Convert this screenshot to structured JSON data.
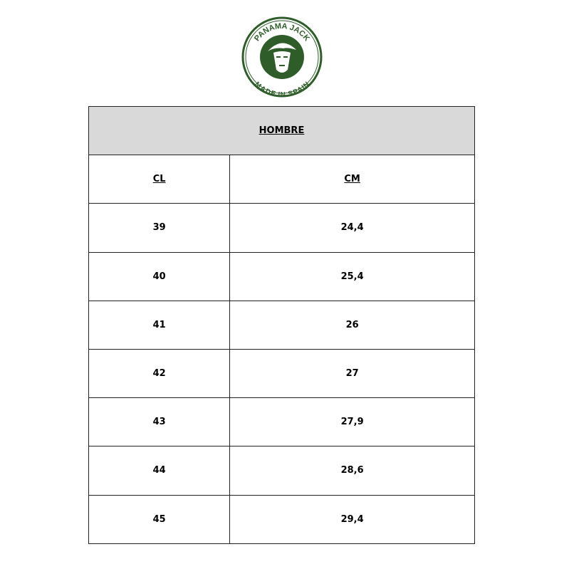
{
  "logo": {
    "brand_text": "PANAMA JACK",
    "sub_text": "MADE IN SPAIN",
    "color": "#2f5d2a"
  },
  "table": {
    "title": "HOMBRE",
    "headers": [
      "CL",
      "CM"
    ],
    "rows": [
      [
        "39",
        "24,4"
      ],
      [
        "40",
        "25,4"
      ],
      [
        "41",
        "26"
      ],
      [
        "42",
        "27"
      ],
      [
        "43",
        "27,9"
      ],
      [
        "44",
        "28,6"
      ],
      [
        "45",
        "29,4"
      ]
    ]
  }
}
